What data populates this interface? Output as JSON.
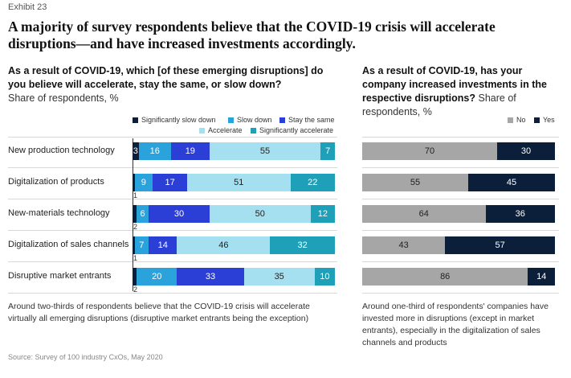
{
  "exhibit": "Exhibit 23",
  "headline": "A majority of survey respondents believe that the COVID-19 crisis will accelerate disruptions—and have increased investments accordingly.",
  "left_title": {
    "bold": "As a result of COVID-19, which [of these emerging disruptions] do you believe will accelerate, stay the same, or slow down?",
    "sub": "Share of respondents, %"
  },
  "right_title": {
    "bold": "As a result of COVID-19, has your company increased investments in the respective disruptions?",
    "sub": "Share of respondents, %"
  },
  "left_note": "Around two-thirds of respondents believe that the COVID-19 crisis will accelerate virtually all emerging disruptions (disruptive market entrants being the exception)",
  "right_note": "Around one-third of respondents' companies have invested more in disruptions (except in market entrants), especially in the digitalization of sales channels and products",
  "source": "Source: Survey of 100 industry CxOs, May 2020",
  "colors": {
    "slow_sig": "#0b1f3a",
    "slow": "#2aa3dc",
    "same": "#2b3ed6",
    "accel": "#a4e0ef",
    "accel_sig": "#1ea1b8",
    "no": "#a6a6a6",
    "yes": "#0b1f3a"
  },
  "chart_data": [
    {
      "type": "bar",
      "orientation": "horizontal",
      "stacked": true,
      "categories": [
        "New production technology",
        "Digitalization of products",
        "New-materials technology",
        "Digitalization of sales channels",
        "Disruptive market entrants"
      ],
      "series": [
        {
          "name": "Significantly slow down",
          "values": [
            3,
            1,
            2,
            1,
            2
          ]
        },
        {
          "name": "Slow down",
          "values": [
            16,
            9,
            6,
            7,
            20
          ]
        },
        {
          "name": "Stay the same",
          "values": [
            19,
            17,
            30,
            14,
            33
          ]
        },
        {
          "name": "Accelerate",
          "values": [
            55,
            51,
            50,
            46,
            35
          ]
        },
        {
          "name": "Significantly accelerate",
          "values": [
            7,
            22,
            12,
            32,
            10
          ]
        }
      ],
      "xlim": [
        0,
        100
      ],
      "legend": "top-right"
    },
    {
      "type": "bar",
      "orientation": "horizontal",
      "stacked": true,
      "categories": [
        "New production technology",
        "Digitalization of products",
        "New-materials technology",
        "Digitalization of sales channels",
        "Disruptive market entrants"
      ],
      "series": [
        {
          "name": "No",
          "values": [
            70,
            55,
            64,
            43,
            86
          ]
        },
        {
          "name": "Yes",
          "values": [
            30,
            45,
            36,
            57,
            14
          ]
        }
      ],
      "xlim": [
        0,
        100
      ],
      "legend": "top-right"
    }
  ]
}
